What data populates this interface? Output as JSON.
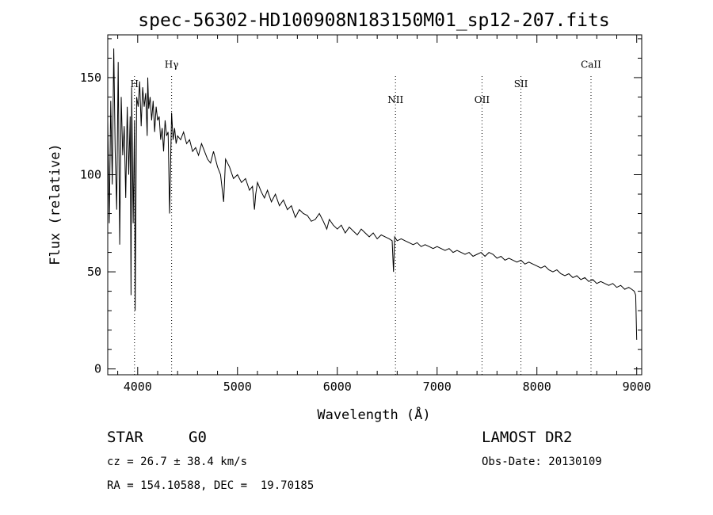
{
  "chart_data": {
    "type": "line",
    "title": "spec-56302-HD100908N183150M01_sp12-207.fits",
    "xlabel": "Wavelength (Å)",
    "ylabel": "Flux (relative)",
    "xlim": [
      3700,
      9050
    ],
    "ylim": [
      -3,
      172
    ],
    "x_ticks": [
      4000,
      5000,
      6000,
      7000,
      8000,
      9000
    ],
    "y_ticks": [
      0,
      50,
      100,
      150
    ],
    "grid": false,
    "line_color": "#000000",
    "series": [
      {
        "x": [
          3700,
          3715,
          3730,
          3745,
          3760,
          3775,
          3790,
          3805,
          3820,
          3835,
          3850,
          3865,
          3880,
          3895,
          3910,
          3925,
          3933,
          3940,
          3955,
          3968,
          3975,
          3990,
          4005,
          4020,
          4035,
          4050,
          4065,
          4080,
          4095,
          4101,
          4110,
          4125,
          4140,
          4155,
          4170,
          4185,
          4200,
          4215,
          4230,
          4245,
          4260,
          4275,
          4290,
          4305,
          4320,
          4340,
          4355,
          4370,
          4385,
          4400,
          4430,
          4460,
          4490,
          4520,
          4550,
          4580,
          4610,
          4640,
          4670,
          4700,
          4730,
          4760,
          4800,
          4830,
          4861,
          4880,
          4920,
          4960,
          5000,
          5040,
          5080,
          5120,
          5150,
          5170,
          5183,
          5200,
          5240,
          5270,
          5300,
          5340,
          5380,
          5420,
          5460,
          5500,
          5540,
          5580,
          5620,
          5660,
          5700,
          5740,
          5780,
          5820,
          5860,
          5895,
          5920,
          5960,
          6000,
          6040,
          6080,
          6120,
          6160,
          6200,
          6240,
          6280,
          6320,
          6360,
          6400,
          6440,
          6480,
          6520,
          6550,
          6563,
          6575,
          6600,
          6640,
          6680,
          6720,
          6760,
          6800,
          6840,
          6880,
          6920,
          6960,
          7000,
          7040,
          7080,
          7120,
          7160,
          7200,
          7240,
          7280,
          7320,
          7360,
          7400,
          7440,
          7480,
          7520,
          7560,
          7600,
          7640,
          7680,
          7720,
          7760,
          7800,
          7840,
          7880,
          7920,
          7960,
          8000,
          8040,
          8080,
          8120,
          8160,
          8200,
          8240,
          8280,
          8320,
          8360,
          8400,
          8440,
          8480,
          8520,
          8560,
          8600,
          8640,
          8680,
          8720,
          8760,
          8800,
          8840,
          8880,
          8920,
          8950,
          8975,
          8990,
          9000
        ],
        "y": [
          128,
          75,
          138,
          95,
          165,
          112,
          82,
          158,
          64,
          140,
          110,
          125,
          88,
          135,
          100,
          130,
          38,
          145,
          75,
          128,
          30,
          140,
          135,
          148,
          125,
          145,
          135,
          142,
          120,
          150,
          134,
          140,
          128,
          138,
          122,
          135,
          128,
          130,
          118,
          124,
          112,
          128,
          120,
          122,
          80,
          132,
          118,
          124,
          116,
          120,
          118,
          122,
          116,
          118,
          112,
          114,
          110,
          116,
          112,
          108,
          106,
          112,
          104,
          100,
          86,
          108,
          104,
          98,
          100,
          96,
          98,
          92,
          94,
          82,
          90,
          96,
          91,
          88,
          92,
          86,
          90,
          84,
          87,
          82,
          84,
          78,
          82,
          80,
          79,
          76,
          77,
          80,
          76,
          72,
          77,
          74,
          72,
          74,
          70,
          73,
          71,
          69,
          72,
          70,
          68,
          70,
          67,
          69,
          68,
          67,
          66,
          50,
          68,
          66,
          67,
          66,
          65,
          64,
          65,
          63,
          64,
          63,
          62,
          63,
          62,
          61,
          62,
          60,
          61,
          60,
          59,
          60,
          58,
          59,
          60,
          58,
          60,
          59,
          57,
          58,
          56,
          57,
          56,
          55,
          56,
          54,
          55,
          54,
          53,
          52,
          53,
          51,
          50,
          51,
          49,
          48,
          49,
          47,
          48,
          46,
          47,
          45,
          46,
          44,
          45,
          44,
          43,
          44,
          42,
          43,
          41,
          42,
          41,
          40,
          38,
          15
        ]
      }
    ],
    "annotations": [
      {
        "label": "H",
        "x": 3968,
        "y": 145
      },
      {
        "label": "Hγ",
        "x": 4340,
        "y": 155
      },
      {
        "label": "NII",
        "x": 6583,
        "y": 137
      },
      {
        "label": "OII",
        "x": 7450,
        "y": 137
      },
      {
        "label": "SII",
        "x": 7840,
        "y": 145
      },
      {
        "label": "CaII",
        "x": 8542,
        "y": 155
      }
    ]
  },
  "info": {
    "object_class": "STAR",
    "subclass": "G0",
    "redshift": "cz = 26.7 ± 38.4 km/s",
    "coords": "RA = 154.10588, DEC =  19.70185",
    "survey": "LAMOST DR2",
    "obs_date": "Obs-Date: 20130109"
  }
}
